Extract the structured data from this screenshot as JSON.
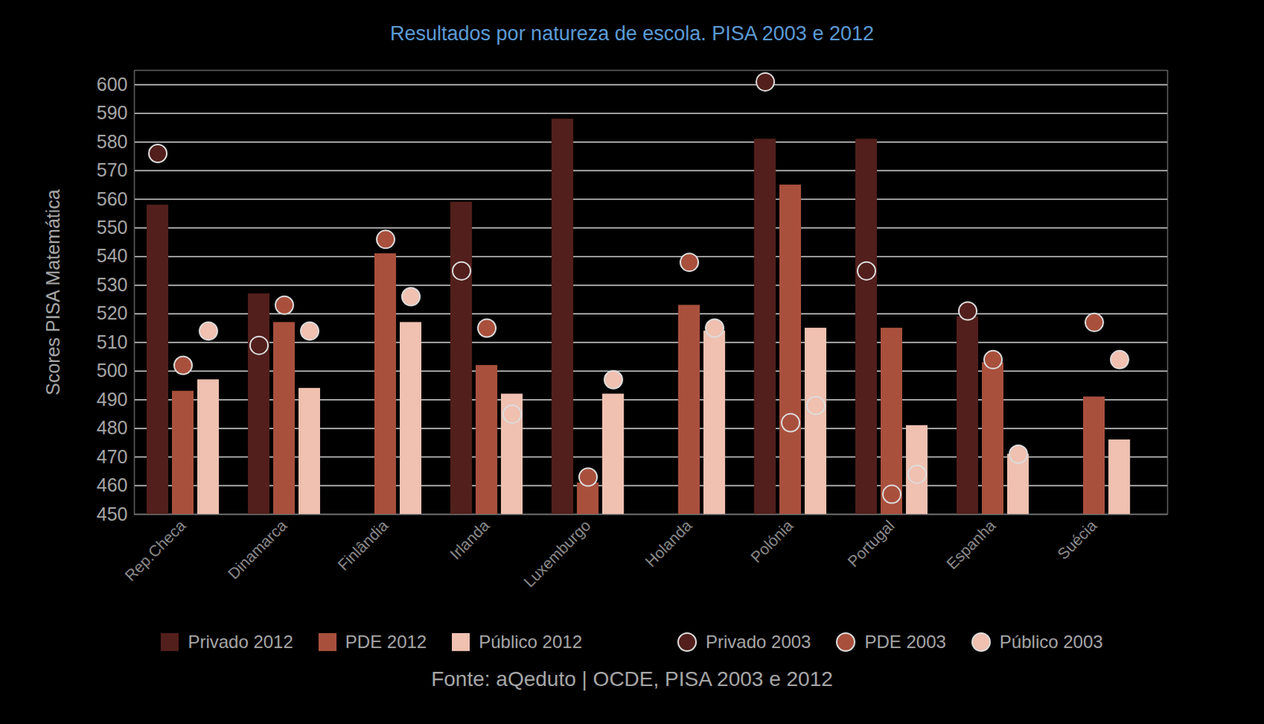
{
  "chart_data": {
    "type": "bar",
    "title": "Resultados por natureza de escola. PISA 2003 e 2012",
    "y_label": "Scores PISA Matemática",
    "source": "Fonte: aQeduto | OCDE, PISA 2003 e 2012",
    "categories": [
      "Rep.Checa",
      "Dinamarca",
      "Finlândia",
      "Irlanda",
      "Luxemburgo",
      "Holanda",
      "Polónia",
      "Portugal",
      "Espanha",
      "Suécia"
    ],
    "series": [
      {
        "name": "Privado 2012",
        "type": "bar",
        "color": "#521f1c",
        "values": [
          558,
          527,
          null,
          559,
          588,
          null,
          581,
          581,
          519,
          null
        ]
      },
      {
        "name": "PDE 2012",
        "type": "bar",
        "color": "#a9503d",
        "values": [
          493,
          517,
          541,
          502,
          461,
          523,
          565,
          515,
          503,
          491
        ]
      },
      {
        "name": "Público 2012",
        "type": "bar",
        "color": "#f0c0b0",
        "values": [
          497,
          494,
          517,
          492,
          492,
          514,
          515,
          481,
          471,
          476
        ]
      },
      {
        "name": "Privado 2003",
        "type": "scatter",
        "marker": "circle",
        "color": "#521f1c",
        "values": [
          576,
          509,
          null,
          535,
          null,
          null,
          601,
          535,
          521,
          null
        ]
      },
      {
        "name": "PDE 2003",
        "type": "scatter",
        "marker": "circle",
        "color": "#a9503d",
        "values": [
          502,
          523,
          546,
          515,
          463,
          538,
          482,
          457,
          504,
          517
        ]
      },
      {
        "name": "Público 2003",
        "type": "scatter",
        "marker": "circle",
        "color": "#f0c0b0",
        "values": [
          514,
          514,
          526,
          485,
          497,
          515,
          488,
          464,
          471,
          504
        ]
      }
    ],
    "ylim": [
      450,
      605
    ],
    "yticks": [
      450,
      460,
      470,
      480,
      490,
      500,
      510,
      520,
      530,
      540,
      550,
      560,
      570,
      580,
      590,
      600
    ],
    "grid": true,
    "legend": "bottom"
  }
}
